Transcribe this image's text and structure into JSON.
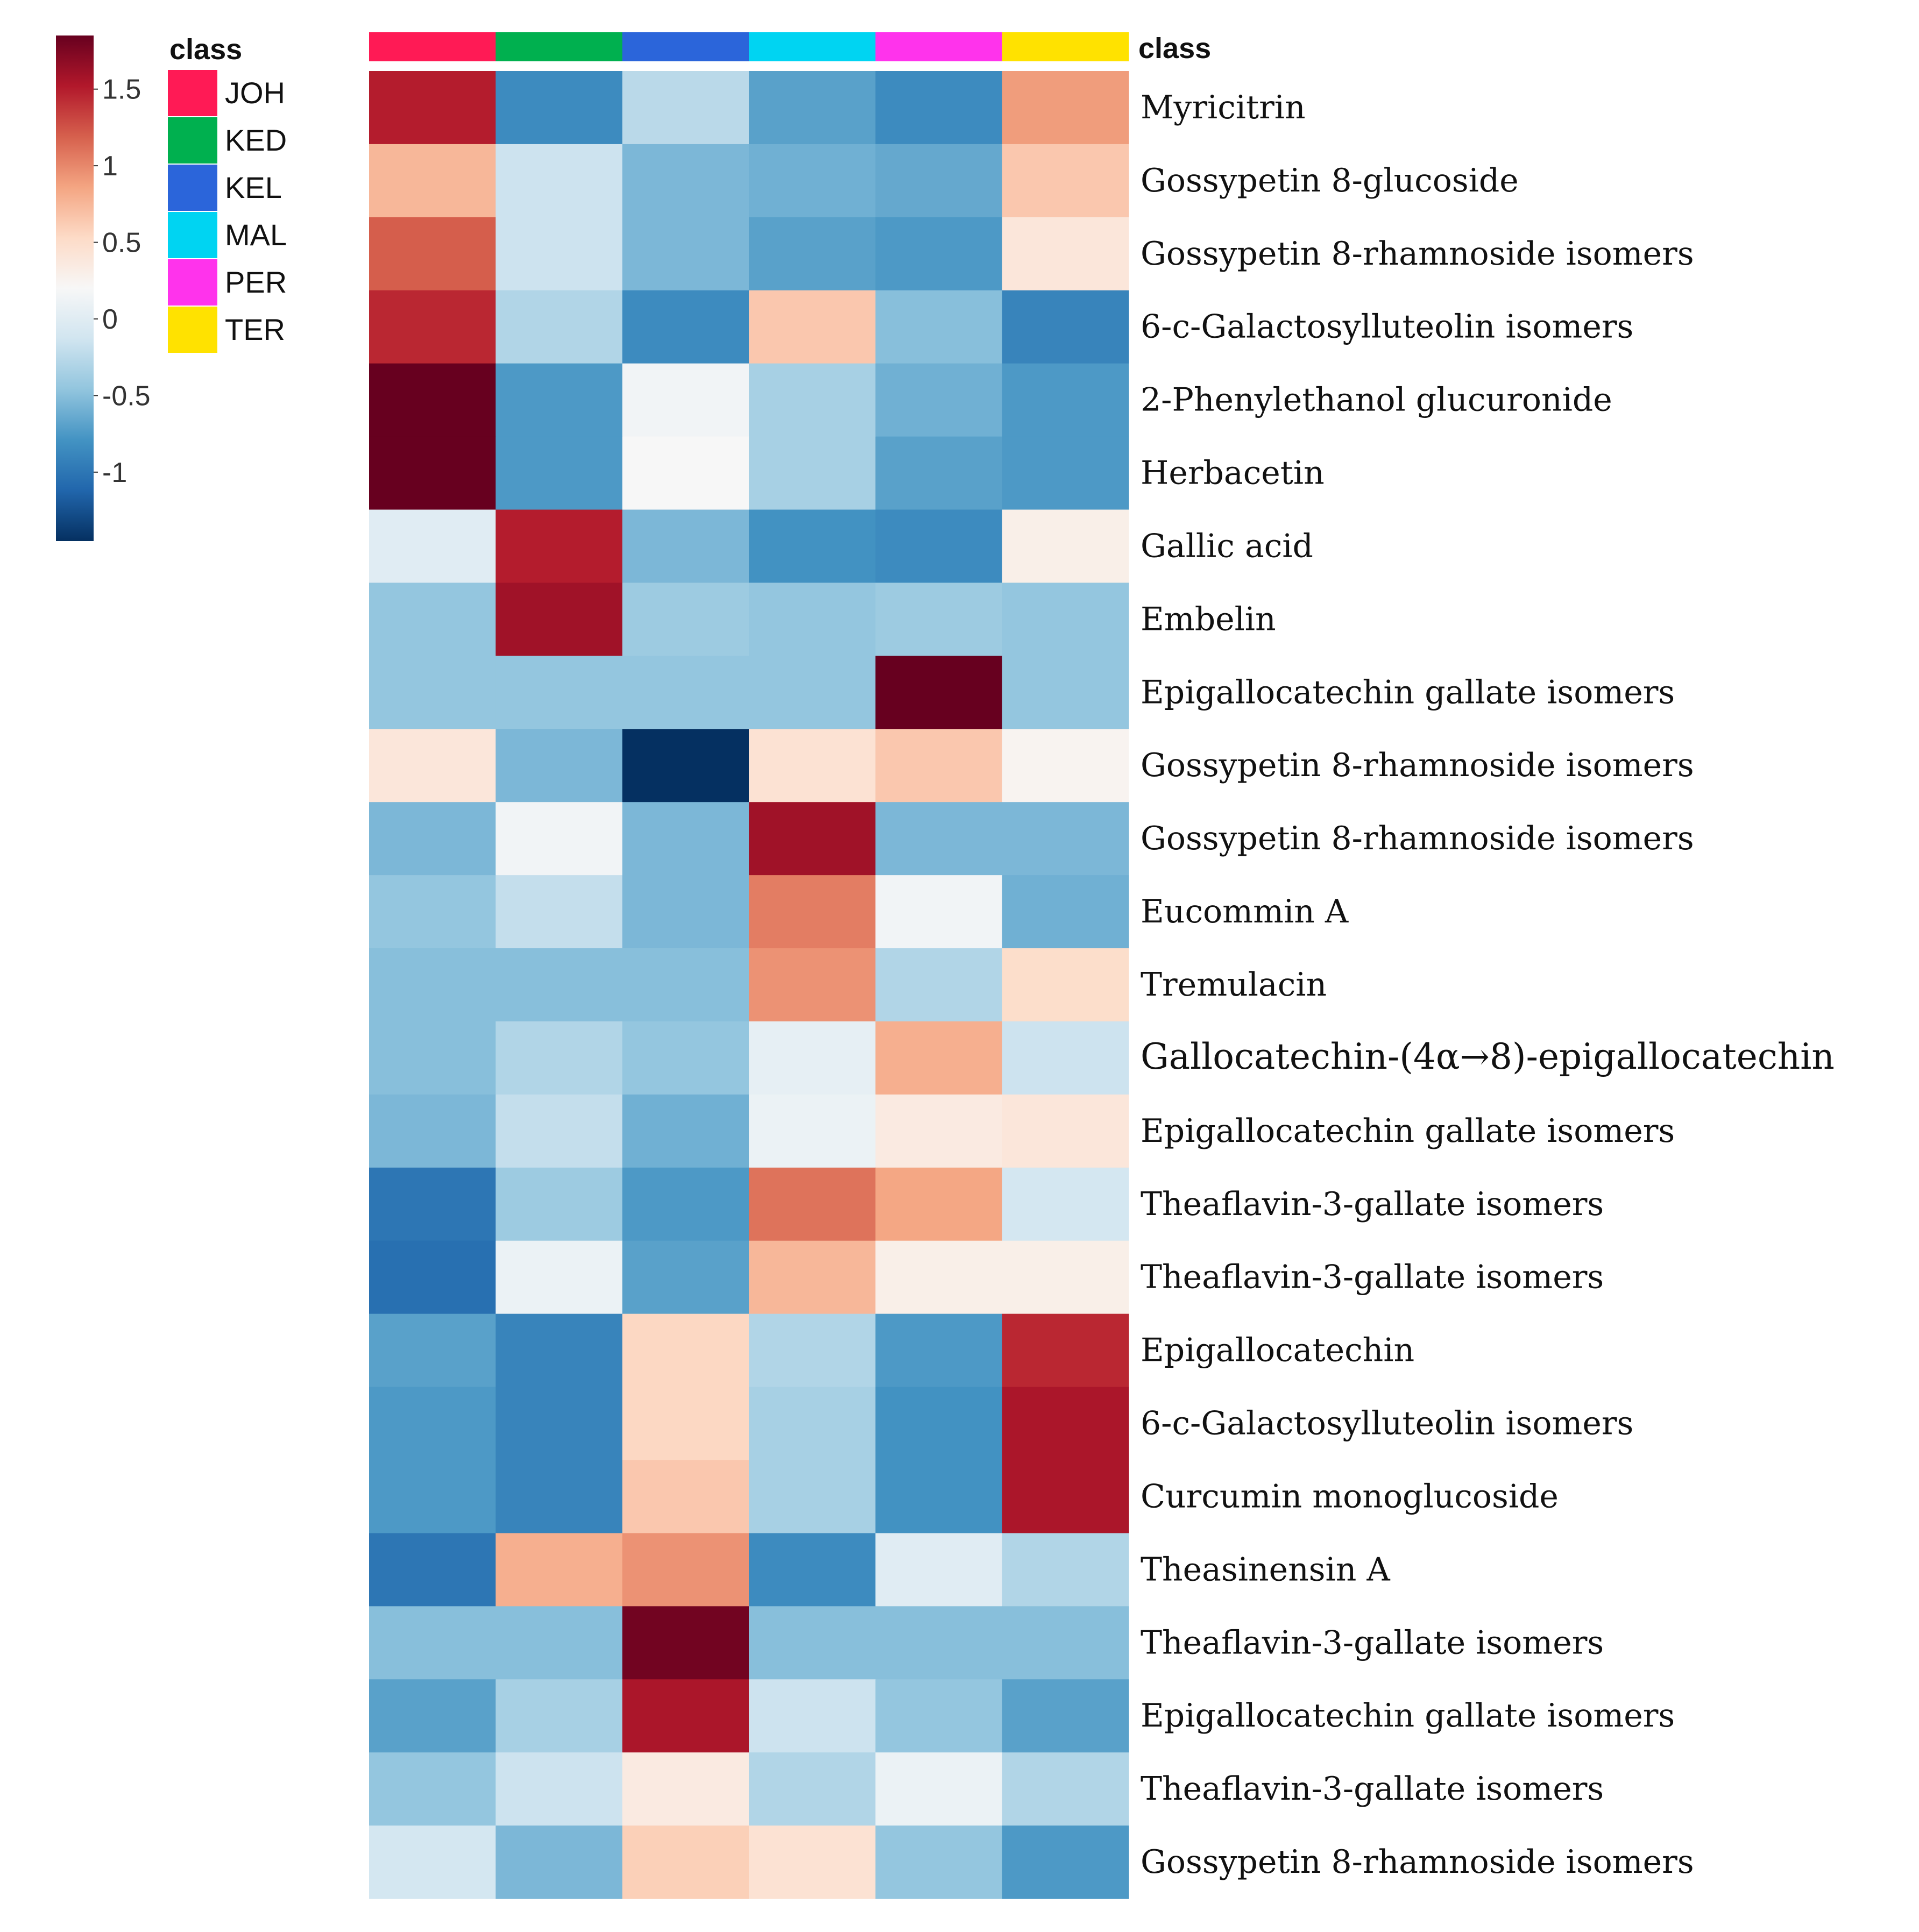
{
  "chart_data": {
    "type": "heatmap",
    "title": "",
    "legend_title": "class",
    "annotation_title": "class",
    "colorscale": {
      "ticks": [
        "1.5",
        "1",
        "0.5",
        "0",
        "-0.5",
        "-1"
      ],
      "tick_values": [
        1.5,
        1,
        0.5,
        0,
        -0.5,
        -1
      ],
      "range": [
        -1.45,
        1.85
      ],
      "colors": [
        "#053061",
        "#2166ac",
        "#4393c3",
        "#92c5de",
        "#d1e5f0",
        "#f7f7f7",
        "#fddbc7",
        "#f4a582",
        "#d6604d",
        "#b2182b",
        "#67001f"
      ]
    },
    "columns": [
      "JOH",
      "KED",
      "KEL",
      "MAL",
      "PER",
      "TER"
    ],
    "class_colors": {
      "JOH": "#FF1A55",
      "KED": "#00B04F",
      "KEL": "#2B65DA",
      "MAL": "#00D4F2",
      "PER": "#FF33EC",
      "TER": "#FFE200"
    },
    "rows": [
      "Myricitrin",
      "Gossypetin 8-glucoside",
      "Gossypetin 8-rhamnoside isomers",
      "6-c-Galactosylluteolin isomers",
      "2-Phenylethanol glucuronide",
      "Herbacetin",
      "Gallic acid",
      "Embelin",
      "Epigallocatechin gallate isomers",
      "Gossypetin 8-rhamnoside isomers",
      "Gossypetin 8-rhamnoside isomers",
      "Eucommin A",
      "Tremulacin",
      "Gallocatechin-(4α→8)-epigallocatechin",
      "Epigallocatechin gallate isomers",
      "Theaflavin-3-gallate isomers",
      "Theaflavin-3-gallate isomers",
      "Epigallocatechin",
      "6-c-Galactosylluteolin isomers",
      "Curcumin monoglucoside",
      "Theasinensin A",
      "Theaflavin-3-gallate isomers",
      "Epigallocatechin gallate isomers",
      "Theaflavin-3-gallate isomers",
      "Gossypetin 8-rhamnoside isomers"
    ],
    "values": [
      [
        1.5,
        -0.85,
        -0.25,
        -0.7,
        -0.85,
        0.9
      ],
      [
        0.75,
        -0.15,
        -0.55,
        -0.6,
        -0.65,
        0.65
      ],
      [
        1.2,
        -0.15,
        -0.55,
        -0.7,
        -0.75,
        0.4
      ],
      [
        1.45,
        -0.3,
        -0.85,
        0.65,
        -0.5,
        -0.9
      ],
      [
        1.85,
        -0.75,
        0.15,
        -0.35,
        -0.6,
        -0.75
      ],
      [
        1.85,
        -0.75,
        0.2,
        -0.35,
        -0.7,
        -0.75
      ],
      [
        0.0,
        1.5,
        -0.55,
        -0.8,
        -0.85,
        0.3
      ],
      [
        -0.45,
        1.6,
        -0.4,
        -0.45,
        -0.4,
        -0.45
      ],
      [
        -0.45,
        -0.45,
        -0.45,
        -0.45,
        1.85,
        -0.45
      ],
      [
        0.4,
        -0.55,
        -1.45,
        0.45,
        0.65,
        0.25
      ],
      [
        -0.55,
        0.15,
        -0.55,
        1.6,
        -0.55,
        -0.55
      ],
      [
        -0.45,
        -0.2,
        -0.55,
        1.05,
        0.15,
        -0.6
      ],
      [
        -0.5,
        -0.5,
        -0.5,
        0.95,
        -0.3,
        0.5
      ],
      [
        -0.5,
        -0.3,
        -0.45,
        0.05,
        0.8,
        -0.15
      ],
      [
        -0.55,
        -0.2,
        -0.6,
        0.1,
        0.35,
        0.4
      ],
      [
        -1.0,
        -0.4,
        -0.75,
        1.1,
        0.85,
        -0.1
      ],
      [
        -1.05,
        0.1,
        -0.7,
        0.75,
        0.3,
        0.3
      ],
      [
        -0.7,
        -0.9,
        0.55,
        -0.3,
        -0.75,
        1.45
      ],
      [
        -0.75,
        -0.9,
        0.55,
        -0.35,
        -0.8,
        1.55
      ],
      [
        -0.75,
        -0.9,
        0.65,
        -0.35,
        -0.8,
        1.55
      ],
      [
        -1.0,
        0.8,
        0.95,
        -0.85,
        0.0,
        -0.3
      ],
      [
        -0.5,
        -0.5,
        1.8,
        -0.5,
        -0.5,
        -0.5
      ],
      [
        -0.7,
        -0.35,
        1.55,
        -0.15,
        -0.45,
        -0.7
      ],
      [
        -0.45,
        -0.15,
        0.35,
        -0.3,
        0.1,
        -0.3
      ],
      [
        -0.1,
        -0.55,
        0.6,
        0.45,
        -0.45,
        -0.75
      ]
    ]
  }
}
